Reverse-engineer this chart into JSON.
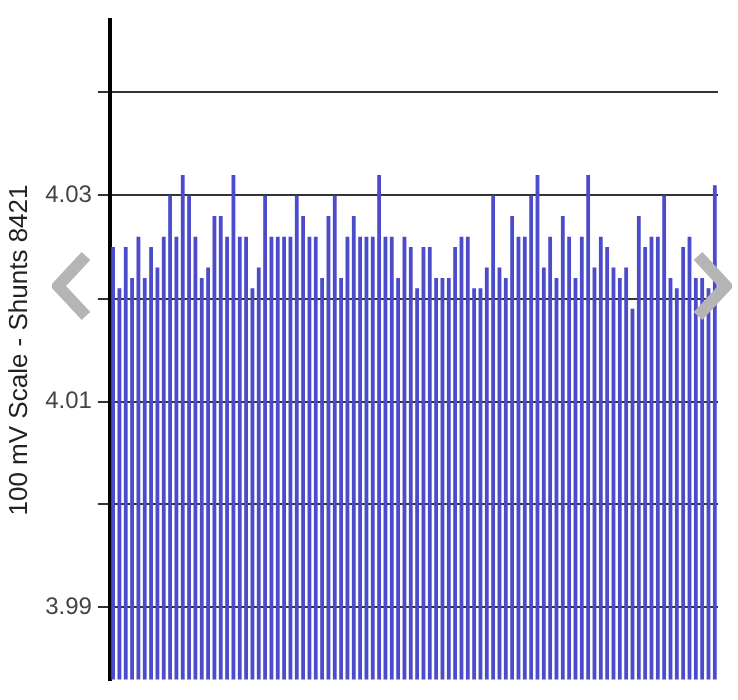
{
  "chart_data": {
    "type": "bar",
    "ylabel": "100 mV Scale - Shunts 8421",
    "categories": [
      null,
      null,
      null,
      null,
      null,
      null,
      null,
      null,
      null,
      null,
      null,
      null,
      null,
      null,
      null,
      null,
      null,
      null,
      null,
      null,
      null,
      null,
      null,
      null,
      null,
      null,
      null,
      null,
      null,
      null,
      null,
      null,
      null,
      null,
      null,
      null,
      null,
      null,
      null,
      null,
      null,
      null,
      null,
      null,
      null,
      null,
      null,
      null,
      null,
      null,
      null,
      null,
      null,
      null,
      null,
      null,
      null,
      null,
      null,
      null,
      null,
      null,
      null,
      null,
      null,
      null,
      null,
      null,
      null,
      null,
      null,
      null,
      null,
      null,
      null,
      null,
      null,
      null,
      null,
      null,
      null,
      null,
      null,
      null,
      null,
      null,
      null,
      null,
      null,
      null,
      null,
      null,
      null,
      null,
      null,
      null
    ],
    "values": [
      4.025,
      4.021,
      4.025,
      4.022,
      4.026,
      4.022,
      4.025,
      4.023,
      4.026,
      4.03,
      4.026,
      4.032,
      4.03,
      4.026,
      4.022,
      4.023,
      4.028,
      4.028,
      4.026,
      4.032,
      4.026,
      4.026,
      4.021,
      4.023,
      4.03,
      4.026,
      4.026,
      4.026,
      4.026,
      4.03,
      4.028,
      4.026,
      4.026,
      4.022,
      4.028,
      4.03,
      4.022,
      4.026,
      4.028,
      4.026,
      4.026,
      4.026,
      4.032,
      4.026,
      4.026,
      4.022,
      4.026,
      4.025,
      4.021,
      4.025,
      4.025,
      4.022,
      4.022,
      4.022,
      4.025,
      4.026,
      4.026,
      4.021,
      4.021,
      4.023,
      4.03,
      4.023,
      4.022,
      4.028,
      4.026,
      4.026,
      4.03,
      4.032,
      4.023,
      4.026,
      4.022,
      4.028,
      4.026,
      4.022,
      4.026,
      4.032,
      4.023,
      4.026,
      4.025,
      4.023,
      4.022,
      4.023,
      4.019,
      4.028,
      4.025,
      4.026,
      4.026,
      4.03,
      4.022,
      4.021,
      4.025,
      4.026,
      4.022,
      4.022,
      4.021,
      4.031
    ],
    "color": "#4b4bcc",
    "ylim": [
      3.983,
      4.047
    ],
    "yticks": [
      {
        "value": 4.04,
        "label": null
      },
      4.03,
      {
        "value": 4.02,
        "label": null
      },
      4.01,
      {
        "value": 4.0,
        "label": null
      },
      3.99
    ],
    "grid": "y"
  }
}
